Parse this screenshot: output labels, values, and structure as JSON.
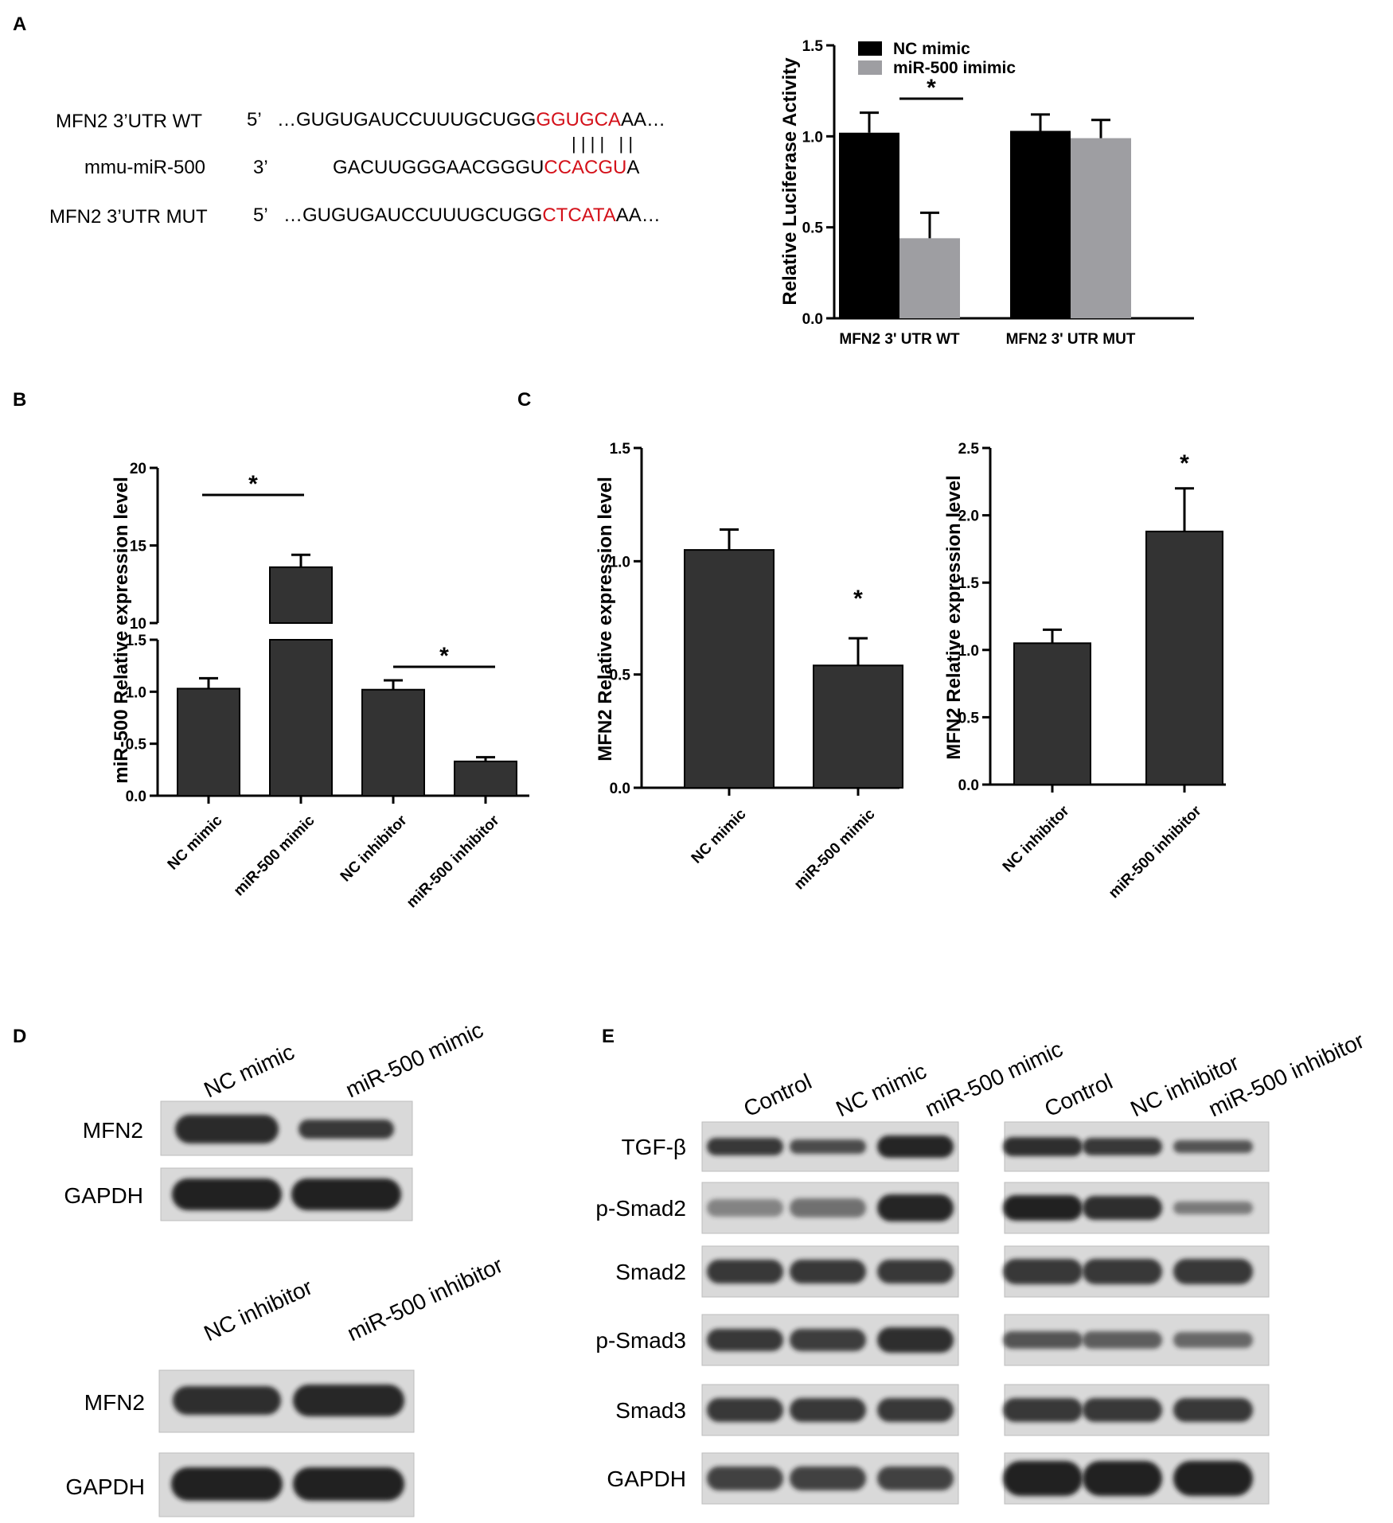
{
  "panels": {
    "A": {
      "letter": "A",
      "sequences": [
        {
          "label": "MFN2 3’UTR WT",
          "prime": "5’",
          "prefix": "…GUGUGAUCCUUUGCUGG",
          "site": "GGUGCA",
          "suffix": "AA…"
        },
        {
          "label": "mmu-miR-500",
          "prime": "3’",
          "prefix": "GACUUGGGAACGGGU",
          "site": "CCACGU",
          "suffix": "A"
        },
        {
          "label": "MFN2 3’UTR MUT",
          "prime": "5’",
          "prefix": "…GUGUGAUCCUUUGCUGG",
          "site": "CTCATA",
          "suffix": "AA…"
        }
      ],
      "pairing_marks": "| | | |   | |"
    },
    "B": {
      "letter": "B"
    },
    "C": {
      "letter": "C"
    },
    "D": {
      "letter": "D",
      "top": {
        "lanes": [
          "NC mimic",
          "miR-500 mimic"
        ],
        "rows": [
          "MFN2",
          "GAPDH"
        ]
      },
      "bottom": {
        "lanes": [
          "NC inhibitor",
          "miR-500 inhibitor"
        ],
        "rows": [
          "MFN2",
          "GAPDH"
        ]
      }
    },
    "E": {
      "letter": "E",
      "lanes_left": [
        "Control",
        "NC mimic",
        "miR-500 mimic"
      ],
      "lanes_right": [
        "Control",
        "NC inhibitor",
        "miR-500 inhibitor"
      ],
      "rows": [
        "TGF-β",
        "p-Smad2",
        "Smad2",
        "p-Smad3",
        "Smad3",
        "GAPDH"
      ]
    }
  },
  "colors": {
    "dark_bar": "#333333",
    "black_bar": "#000000",
    "grey_bar": "#9e9ea2",
    "red_site": "#d4111a",
    "blot_bg": "#d9d9d9",
    "band": "#1a1a1a"
  },
  "chart_data": [
    {
      "id": "A",
      "type": "bar",
      "categories": [
        "MFN2 3' UTR WT",
        "MFN2 3' UTR MUT"
      ],
      "series": [
        {
          "name": "NC mimic",
          "values": [
            1.02,
            1.03
          ],
          "errors": [
            0.11,
            0.09
          ]
        },
        {
          "name": "miR-500 imimic",
          "values": [
            0.44,
            0.99
          ],
          "errors": [
            0.14,
            0.1
          ]
        }
      ],
      "ylabel": "Relative Luciferase Activity",
      "ylim": [
        0,
        1.5
      ],
      "yticks": [
        "0.0",
        "0.5",
        "1.0",
        "1.5"
      ],
      "annotations": [
        "*"
      ]
    },
    {
      "id": "B",
      "type": "bar",
      "categories": [
        "NC mimic",
        "miR-500 mimic",
        "NC inhibitor",
        "miR-500 inhibitor"
      ],
      "values": [
        1.03,
        13.6,
        1.02,
        0.33
      ],
      "errors": [
        0.1,
        0.8,
        0.09,
        0.04
      ],
      "ylabel": "miR-500 Relative  expression level",
      "axis_break": {
        "lower": [
          0,
          1.5
        ],
        "upper": [
          10,
          20
        ]
      },
      "yticks_lower": [
        "0.0",
        "0.5",
        "1.0",
        "1.5"
      ],
      "yticks_upper": [
        "10",
        "15",
        "20"
      ],
      "annotations": [
        "*",
        "*"
      ]
    },
    {
      "id": "C1",
      "type": "bar",
      "categories": [
        "NC mimic",
        "miR-500 mimic"
      ],
      "values": [
        1.05,
        0.54
      ],
      "errors": [
        0.09,
        0.12
      ],
      "ylabel": "MFN2 Relative  expression level",
      "ylim": [
        0,
        1.5
      ],
      "yticks": [
        "0.0",
        "0.5",
        "1.0",
        "1.5"
      ],
      "annotations": [
        "*"
      ]
    },
    {
      "id": "C2",
      "type": "bar",
      "categories": [
        "NC inhibitor",
        "miR-500 inhibitor"
      ],
      "values": [
        1.05,
        1.88
      ],
      "errors": [
        0.1,
        0.32
      ],
      "ylabel": "MFN2 Relative  expression level",
      "ylim": [
        0,
        2.5
      ],
      "yticks": [
        "0.0",
        "0.5",
        "1.0",
        "1.5",
        "2.0",
        "2.5"
      ],
      "annotations": [
        "*"
      ]
    }
  ]
}
